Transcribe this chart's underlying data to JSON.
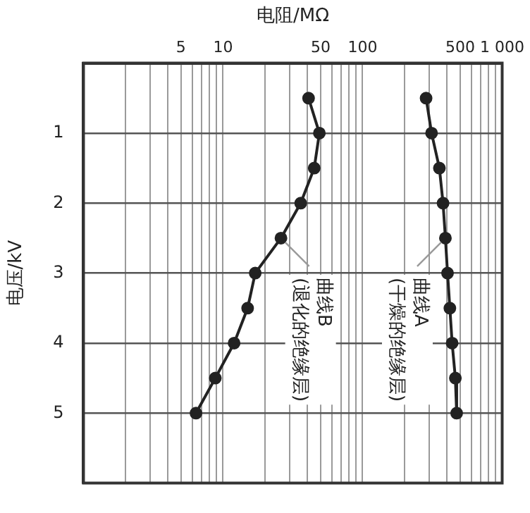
{
  "chart_data": {
    "type": "line",
    "xlabel": "电阻/MΩ",
    "ylabel": "电压/kV",
    "log": "x",
    "xlim": [
      1,
      1000
    ],
    "xticks": [
      {
        "value": 2,
        "label": null
      },
      {
        "value": 3,
        "label": null
      },
      {
        "value": 4,
        "label": null
      },
      5,
      {
        "value": 6,
        "label": null
      },
      {
        "value": 7,
        "label": null
      },
      {
        "value": 8,
        "label": null
      },
      {
        "value": 9,
        "label": null
      },
      10,
      {
        "value": 20,
        "label": null
      },
      {
        "value": 30,
        "label": null
      },
      {
        "value": 40,
        "label": null
      },
      50,
      {
        "value": 60,
        "label": null
      },
      {
        "value": 70,
        "label": null
      },
      {
        "value": 80,
        "label": null
      },
      {
        "value": 90,
        "label": null
      },
      100,
      {
        "value": 200,
        "label": null
      },
      {
        "value": 300,
        "label": null
      },
      {
        "value": 400,
        "label": null
      },
      500,
      {
        "value": 600,
        "label": null
      },
      {
        "value": 700,
        "label": null
      },
      {
        "value": 800,
        "label": null
      },
      {
        "value": 900,
        "label": null
      },
      {
        "value": 1000,
        "label": "1 000"
      }
    ],
    "ylim": [
      6,
      0
    ],
    "yticks": [
      1,
      2,
      3,
      4,
      5
    ],
    "grid": true,
    "legend": false,
    "marker": "circle",
    "line_style": "solid",
    "series": [
      {
        "color": "#222222",
        "x": [
          285,
          312,
          355,
          377,
          392,
          406,
          422,
          438,
          462,
          472
        ],
        "values": [
          0.5,
          1,
          1.5,
          2,
          2.5,
          3,
          3.5,
          4,
          4.5,
          5
        ]
      },
      {
        "color": "#222222",
        "x": [
          41,
          49,
          45,
          36,
          26,
          17,
          15,
          12,
          8.8,
          6.4
        ],
        "values": [
          0.5,
          1,
          1.5,
          2,
          2.5,
          3,
          3.5,
          4,
          4.5,
          5
        ]
      }
    ],
    "annotations": [
      {
        "text": "曲线A\n(干燥的绝缘层)",
        "x": 392,
        "y": 2.5
      },
      {
        "text": "曲线B\n(退化的绝缘层)",
        "x": 26,
        "y": 2.5
      }
    ]
  }
}
